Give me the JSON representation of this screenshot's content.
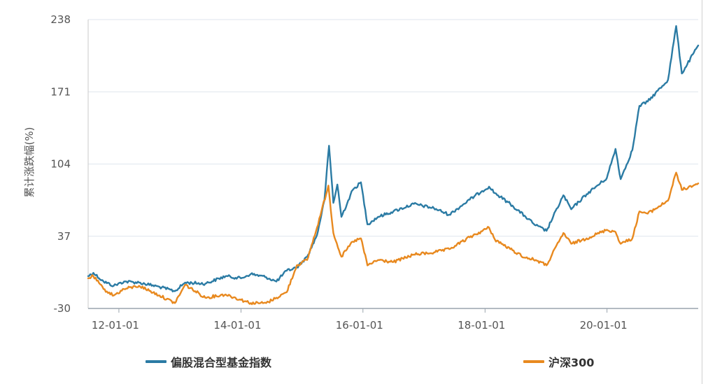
{
  "chart_data": {
    "type": "line",
    "title": "",
    "xlabel": "",
    "ylabel": "累计涨跌幅(%)",
    "ylim": [
      -30,
      238
    ],
    "yticks": [
      "238",
      "171",
      "104",
      "37",
      "-30"
    ],
    "xticks": [
      "12-01-01",
      "14-01-01",
      "16-01-01",
      "18-01-01",
      "20-01-01"
    ],
    "xrange": [
      "2011-07-01",
      "2021-06-30"
    ],
    "grid": true,
    "legend_position": "bottom",
    "series": [
      {
        "name": "偏股混合型基金指数",
        "color": "#2b7ba4",
        "points": [
          [
            "2011-07-01",
            0
          ],
          [
            "2011-08-01",
            3
          ],
          [
            "2011-10-01",
            -5
          ],
          [
            "2011-12-01",
            -9
          ],
          [
            "2012-02-01",
            -5
          ],
          [
            "2012-05-01",
            -6
          ],
          [
            "2012-09-01",
            -10
          ],
          [
            "2012-12-01",
            -14
          ],
          [
            "2013-02-01",
            -6
          ],
          [
            "2013-06-01",
            -7
          ],
          [
            "2013-10-01",
            0
          ],
          [
            "2014-01-01",
            -2
          ],
          [
            "2014-03-01",
            2
          ],
          [
            "2014-06-01",
            -1
          ],
          [
            "2014-08-01",
            -5
          ],
          [
            "2014-10-01",
            5
          ],
          [
            "2014-12-01",
            8
          ],
          [
            "2015-02-01",
            18
          ],
          [
            "2015-04-01",
            38
          ],
          [
            "2015-05-15",
            70
          ],
          [
            "2015-06-12",
            121
          ],
          [
            "2015-07-08",
            68
          ],
          [
            "2015-08-01",
            85
          ],
          [
            "2015-08-25",
            55
          ],
          [
            "2015-11-01",
            80
          ],
          [
            "2015-12-20",
            87
          ],
          [
            "2016-01-28",
            48
          ],
          [
            "2016-04-01",
            55
          ],
          [
            "2016-07-01",
            60
          ],
          [
            "2016-11-01",
            67
          ],
          [
            "2017-03-01",
            63
          ],
          [
            "2017-06-01",
            57
          ],
          [
            "2017-10-01",
            71
          ],
          [
            "2017-12-15",
            79
          ],
          [
            "2018-01-25",
            83
          ],
          [
            "2018-03-01",
            77
          ],
          [
            "2018-06-01",
            67
          ],
          [
            "2018-09-01",
            55
          ],
          [
            "2018-11-01",
            47
          ],
          [
            "2019-01-04",
            42
          ],
          [
            "2019-04-15",
            75
          ],
          [
            "2019-06-01",
            62
          ],
          [
            "2019-09-01",
            76
          ],
          [
            "2019-12-31",
            91
          ],
          [
            "2020-02-21",
            118
          ],
          [
            "2020-03-23",
            90
          ],
          [
            "2020-06-01",
            117
          ],
          [
            "2020-07-13",
            158
          ],
          [
            "2020-09-01",
            162
          ],
          [
            "2020-12-31",
            182
          ],
          [
            "2021-02-18",
            232
          ],
          [
            "2021-03-24",
            188
          ],
          [
            "2021-06-30",
            214
          ]
        ]
      },
      {
        "name": "沪深300",
        "color": "#e8891f",
        "points": [
          [
            "2011-07-01",
            -2
          ],
          [
            "2011-08-01",
            0
          ],
          [
            "2011-10-01",
            -12
          ],
          [
            "2011-12-01",
            -18
          ],
          [
            "2012-02-01",
            -12
          ],
          [
            "2012-05-01",
            -9
          ],
          [
            "2012-09-01",
            -18
          ],
          [
            "2012-12-01",
            -25
          ],
          [
            "2013-02-01",
            -8
          ],
          [
            "2013-06-01",
            -20
          ],
          [
            "2013-10-01",
            -17
          ],
          [
            "2014-01-01",
            -22
          ],
          [
            "2014-03-01",
            -25
          ],
          [
            "2014-06-01",
            -25
          ],
          [
            "2014-08-01",
            -20
          ],
          [
            "2014-10-01",
            -15
          ],
          [
            "2014-12-01",
            10
          ],
          [
            "2015-02-01",
            15
          ],
          [
            "2015-04-01",
            45
          ],
          [
            "2015-06-08",
            84
          ],
          [
            "2015-07-08",
            40
          ],
          [
            "2015-08-25",
            18
          ],
          [
            "2015-11-01",
            32
          ],
          [
            "2015-12-20",
            35
          ],
          [
            "2016-01-28",
            10
          ],
          [
            "2016-04-01",
            15
          ],
          [
            "2016-07-01",
            13
          ],
          [
            "2016-11-01",
            20
          ],
          [
            "2017-03-01",
            22
          ],
          [
            "2017-06-01",
            25
          ],
          [
            "2017-10-01",
            36
          ],
          [
            "2018-01-25",
            45
          ],
          [
            "2018-03-01",
            34
          ],
          [
            "2018-06-01",
            25
          ],
          [
            "2018-09-01",
            17
          ],
          [
            "2018-11-01",
            15
          ],
          [
            "2019-01-04",
            10
          ],
          [
            "2019-04-15",
            40
          ],
          [
            "2019-06-01",
            30
          ],
          [
            "2019-09-01",
            35
          ],
          [
            "2019-12-31",
            43
          ],
          [
            "2020-02-21",
            41
          ],
          [
            "2020-03-23",
            30
          ],
          [
            "2020-06-01",
            35
          ],
          [
            "2020-07-13",
            60
          ],
          [
            "2020-09-01",
            58
          ],
          [
            "2020-12-31",
            70
          ],
          [
            "2021-02-18",
            96
          ],
          [
            "2021-03-24",
            80
          ],
          [
            "2021-06-30",
            86
          ]
        ]
      }
    ]
  }
}
